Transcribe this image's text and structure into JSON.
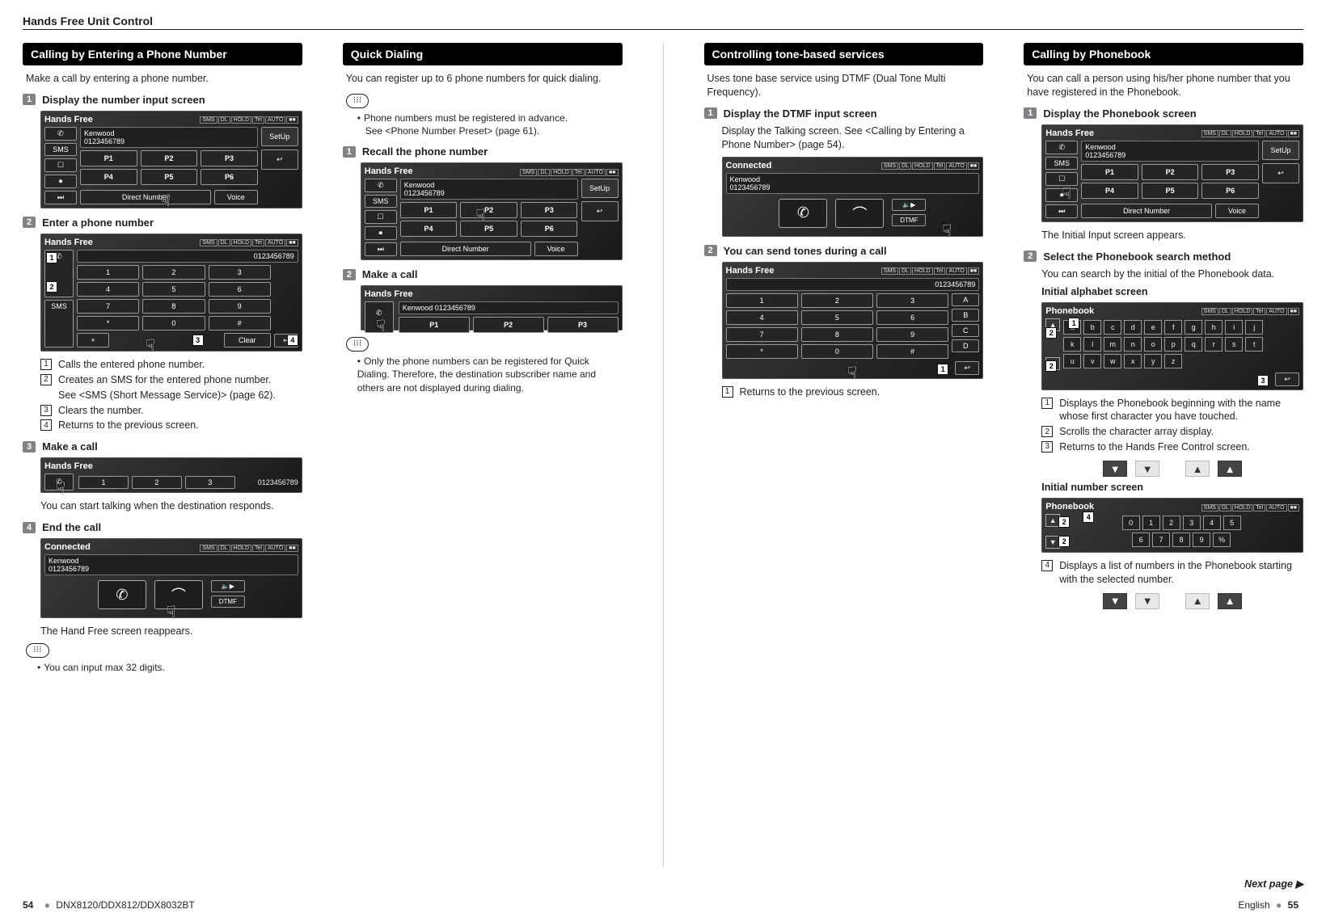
{
  "header": "Hands Free Unit Control",
  "footer": {
    "leftPage": "54",
    "model": "DNX8120/DDX812/DDX8032BT",
    "rightLang": "English",
    "rightPage": "55",
    "nextPage": "Next page ▶"
  },
  "device": {
    "titleHandsFree": "Hands Free",
    "titleConnected": "Connected",
    "titlePhonebook": "Phonebook",
    "infoName": "Kenwood",
    "infoNumber": "0123456789",
    "topIcons": [
      "SMS",
      "DL",
      "HOLD",
      "Tel",
      "AUTO",
      "■■"
    ],
    "sideBtns": [
      "✆",
      "SMS",
      "☐",
      "⏺",
      "⏭"
    ],
    "presets": [
      "P1",
      "P2",
      "P3",
      "P4",
      "P5",
      "P6"
    ],
    "btnDirectNumber": "Direct Number",
    "btnVoice": "Voice",
    "btnSetUp": "SetUp",
    "btnReturn": "↩",
    "btnClear": "Clear",
    "keypad": [
      "1",
      "2",
      "3",
      "4",
      "5",
      "6",
      "7",
      "8",
      "9",
      "*",
      "0",
      "#"
    ],
    "dtmfSide": [
      "A",
      "B",
      "C",
      "D"
    ],
    "speaker": "🔈▶",
    "dtmf": "DTMF",
    "pickup": "✆",
    "hangup": "⌒",
    "alphaRow1": [
      "a",
      "b",
      "c",
      "d",
      "e",
      "f",
      "g",
      "h",
      "i",
      "j"
    ],
    "alphaRow2": [
      "k",
      "l",
      "m",
      "n",
      "o",
      "p",
      "q",
      "r",
      "s",
      "t"
    ],
    "alphaRow3": [
      "u",
      "v",
      "w",
      "x",
      "y",
      "z"
    ],
    "numRow1": [
      "0",
      "1",
      "2",
      "3",
      "4",
      "5"
    ],
    "numRow2": [
      "6",
      "7",
      "8",
      "9",
      "%"
    ],
    "arrUp": "▲",
    "arrDown": "▼"
  },
  "col1": {
    "secA": {
      "title": "Calling by Entering a Phone Number",
      "intro": "Make a call by entering a phone number.",
      "s1": "Display the number input screen",
      "s2": "Enter a phone number",
      "list": {
        "i1": "Calls the entered phone number.",
        "i2": "Creates an SMS for the entered phone number.",
        "i2b": "See <SMS (Short Message Service)> (page 62).",
        "i3": "Clears the number.",
        "i4": "Returns to the previous screen."
      },
      "s3": "Make a call",
      "s3body": "You can start talking when the destination responds.",
      "s4": "End the call",
      "s4body": "The Hand Free screen reappears.",
      "note": "You can input max 32 digits."
    }
  },
  "col2": {
    "secA": {
      "title": "Quick Dialing",
      "intro": "You can register up to 6 phone numbers for quick dialing.",
      "note1a": "Phone numbers must be registered in advance.",
      "note1b": "See <Phone Number Preset> (page 61).",
      "s1": "Recall the phone number",
      "s2": "Make a call",
      "note2": "Only the phone numbers can be registered for Quick Dialing. Therefore, the destination subscriber name and others are not displayed during dialing."
    }
  },
  "col3": {
    "secA": {
      "title": "Controlling tone-based services",
      "intro": "Uses tone base service using DTMF (Dual Tone Multi Frequency).",
      "s1": "Display the DTMF input screen",
      "s1body": "Display the Talking screen. See <Calling by Entering a Phone Number> (page 54).",
      "s2": "You can send tones during a call",
      "li1": "Returns to the previous screen."
    }
  },
  "col4": {
    "secA": {
      "title": "Calling by Phonebook",
      "intro": "You can call a person using his/her phone number that you have registered in the Phonebook.",
      "s1": "Display the Phonebook screen",
      "s1body": "The Initial Input screen appears.",
      "s2": "Select the Phonebook search method",
      "s2body": "You can search by the initial of the Phonebook data.",
      "subAlpha": "Initial alphabet screen",
      "li1": "Displays the Phonebook beginning with the name whose first character you have touched.",
      "li2": "Scrolls the character array display.",
      "li3": "Returns to the Hands Free Control screen.",
      "subNum": "Initial number screen",
      "li4": "Displays a list of numbers in the Phonebook starting with the selected number."
    }
  }
}
